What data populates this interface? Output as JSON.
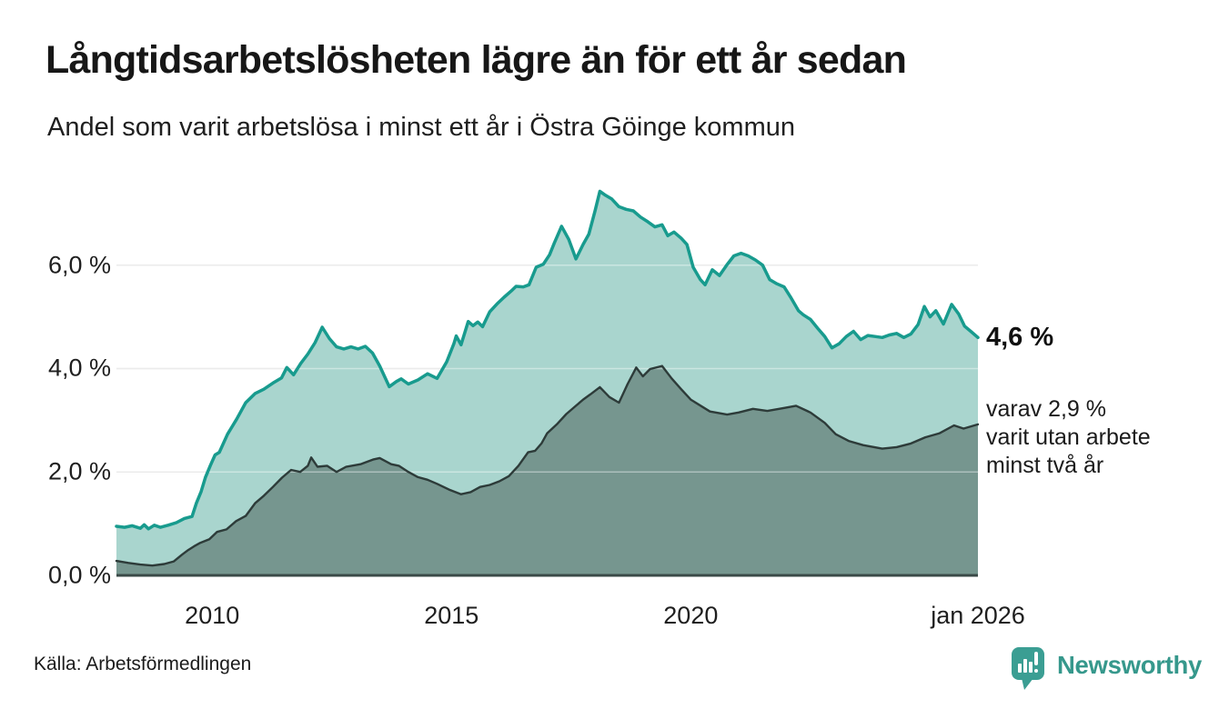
{
  "header": {
    "title": "Långtidsarbetslösheten lägre än för ett år sedan",
    "subtitle": "Andel som varit arbetslösa i minst ett år i Östra Göinge kommun"
  },
  "chart_data": {
    "type": "area",
    "title": "Långtidsarbetslösheten lägre än för ett år sedan",
    "subtitle": "Andel som varit arbetslösa i minst ett år i Östra Göinge kommun",
    "xlabel": "",
    "ylabel": "",
    "xlim": [
      2008,
      2026.0
    ],
    "ylim": [
      0,
      7.7
    ],
    "grid": true,
    "gridlines_at": [
      2,
      4,
      6
    ],
    "gridline_color": "#dedede",
    "baseline_color": "#3a4a47",
    "yticks": [
      {
        "value": 0,
        "label": "0,0 %"
      },
      {
        "value": 2,
        "label": "2,0 %"
      },
      {
        "value": 4,
        "label": "4,0 %"
      },
      {
        "value": 6,
        "label": "6,0 %"
      }
    ],
    "xticks": [
      {
        "value": 2010,
        "label": "2010"
      },
      {
        "value": 2015,
        "label": "2015"
      },
      {
        "value": 2020,
        "label": "2020"
      },
      {
        "value": 2026.0,
        "label": "jan 2026"
      }
    ],
    "series": [
      {
        "name": "Andel som varit arbetslösa i minst ett år",
        "line_color": "#189b8e",
        "fill_color": "#a9d5ce",
        "line_width": 3.5,
        "end_value": "4,6 %",
        "points": [
          [
            2008.0,
            0.95
          ],
          [
            2008.17,
            0.93
          ],
          [
            2008.33,
            0.96
          ],
          [
            2008.5,
            0.91
          ],
          [
            2008.58,
            0.98
          ],
          [
            2008.67,
            0.9
          ],
          [
            2008.79,
            0.97
          ],
          [
            2008.92,
            0.93
          ],
          [
            2009.08,
            0.97
          ],
          [
            2009.25,
            1.02
          ],
          [
            2009.42,
            1.1
          ],
          [
            2009.58,
            1.14
          ],
          [
            2009.67,
            1.4
          ],
          [
            2009.77,
            1.62
          ],
          [
            2009.86,
            1.9
          ],
          [
            2009.96,
            2.12
          ],
          [
            2010.06,
            2.33
          ],
          [
            2010.15,
            2.38
          ],
          [
            2010.32,
            2.73
          ],
          [
            2010.51,
            3.02
          ],
          [
            2010.7,
            3.34
          ],
          [
            2010.9,
            3.52
          ],
          [
            2011.08,
            3.6
          ],
          [
            2011.27,
            3.72
          ],
          [
            2011.45,
            3.82
          ],
          [
            2011.56,
            4.02
          ],
          [
            2011.7,
            3.88
          ],
          [
            2011.85,
            4.1
          ],
          [
            2012.0,
            4.28
          ],
          [
            2012.15,
            4.5
          ],
          [
            2012.3,
            4.8
          ],
          [
            2012.45,
            4.58
          ],
          [
            2012.6,
            4.42
          ],
          [
            2012.75,
            4.38
          ],
          [
            2012.9,
            4.42
          ],
          [
            2013.05,
            4.38
          ],
          [
            2013.2,
            4.43
          ],
          [
            2013.35,
            4.3
          ],
          [
            2013.5,
            4.05
          ],
          [
            2013.7,
            3.65
          ],
          [
            2013.85,
            3.75
          ],
          [
            2013.95,
            3.8
          ],
          [
            2014.1,
            3.7
          ],
          [
            2014.3,
            3.78
          ],
          [
            2014.5,
            3.9
          ],
          [
            2014.7,
            3.81
          ],
          [
            2014.9,
            4.13
          ],
          [
            2015.05,
            4.48
          ],
          [
            2015.1,
            4.63
          ],
          [
            2015.2,
            4.46
          ],
          [
            2015.35,
            4.91
          ],
          [
            2015.45,
            4.83
          ],
          [
            2015.55,
            4.9
          ],
          [
            2015.65,
            4.81
          ],
          [
            2015.8,
            5.1
          ],
          [
            2015.95,
            5.25
          ],
          [
            2016.1,
            5.38
          ],
          [
            2016.25,
            5.5
          ],
          [
            2016.35,
            5.59
          ],
          [
            2016.5,
            5.58
          ],
          [
            2016.62,
            5.62
          ],
          [
            2016.77,
            5.96
          ],
          [
            2016.92,
            6.02
          ],
          [
            2017.05,
            6.2
          ],
          [
            2017.15,
            6.43
          ],
          [
            2017.3,
            6.75
          ],
          [
            2017.45,
            6.5
          ],
          [
            2017.6,
            6.12
          ],
          [
            2017.75,
            6.4
          ],
          [
            2017.87,
            6.6
          ],
          [
            2018.0,
            7.05
          ],
          [
            2018.1,
            7.43
          ],
          [
            2018.22,
            7.35
          ],
          [
            2018.35,
            7.28
          ],
          [
            2018.5,
            7.13
          ],
          [
            2018.65,
            7.08
          ],
          [
            2018.8,
            7.05
          ],
          [
            2018.95,
            6.93
          ],
          [
            2019.1,
            6.84
          ],
          [
            2019.25,
            6.74
          ],
          [
            2019.4,
            6.78
          ],
          [
            2019.52,
            6.57
          ],
          [
            2019.65,
            6.64
          ],
          [
            2019.8,
            6.52
          ],
          [
            2019.92,
            6.4
          ],
          [
            2020.05,
            5.96
          ],
          [
            2020.2,
            5.72
          ],
          [
            2020.3,
            5.62
          ],
          [
            2020.45,
            5.91
          ],
          [
            2020.6,
            5.8
          ],
          [
            2020.75,
            6.0
          ],
          [
            2020.9,
            6.18
          ],
          [
            2021.05,
            6.23
          ],
          [
            2021.2,
            6.18
          ],
          [
            2021.35,
            6.1
          ],
          [
            2021.5,
            6.0
          ],
          [
            2021.65,
            5.72
          ],
          [
            2021.8,
            5.64
          ],
          [
            2021.95,
            5.58
          ],
          [
            2022.1,
            5.36
          ],
          [
            2022.25,
            5.12
          ],
          [
            2022.35,
            5.04
          ],
          [
            2022.5,
            4.95
          ],
          [
            2022.65,
            4.78
          ],
          [
            2022.8,
            4.62
          ],
          [
            2022.95,
            4.4
          ],
          [
            2023.1,
            4.48
          ],
          [
            2023.25,
            4.62
          ],
          [
            2023.4,
            4.72
          ],
          [
            2023.55,
            4.56
          ],
          [
            2023.7,
            4.64
          ],
          [
            2023.85,
            4.62
          ],
          [
            2024.0,
            4.6
          ],
          [
            2024.15,
            4.65
          ],
          [
            2024.3,
            4.68
          ],
          [
            2024.45,
            4.6
          ],
          [
            2024.6,
            4.67
          ],
          [
            2024.75,
            4.85
          ],
          [
            2024.88,
            5.2
          ],
          [
            2025.0,
            5.0
          ],
          [
            2025.12,
            5.12
          ],
          [
            2025.28,
            4.86
          ],
          [
            2025.45,
            5.24
          ],
          [
            2025.6,
            5.05
          ],
          [
            2025.72,
            4.82
          ],
          [
            2025.85,
            4.72
          ],
          [
            2026.0,
            4.6
          ]
        ]
      },
      {
        "name": "varav utan arbete minst två år",
        "line_color": "#2d3b39",
        "fill_color": "#76968f",
        "line_width": 2.4,
        "end_value": "2,9 %",
        "points": [
          [
            2008.0,
            0.28
          ],
          [
            2008.25,
            0.24
          ],
          [
            2008.5,
            0.21
          ],
          [
            2008.75,
            0.19
          ],
          [
            2009.0,
            0.22
          ],
          [
            2009.2,
            0.27
          ],
          [
            2009.37,
            0.4
          ],
          [
            2009.5,
            0.49
          ],
          [
            2009.62,
            0.56
          ],
          [
            2009.75,
            0.63
          ],
          [
            2009.94,
            0.7
          ],
          [
            2010.1,
            0.84
          ],
          [
            2010.3,
            0.89
          ],
          [
            2010.5,
            1.05
          ],
          [
            2010.7,
            1.15
          ],
          [
            2010.9,
            1.4
          ],
          [
            2011.08,
            1.54
          ],
          [
            2011.27,
            1.71
          ],
          [
            2011.46,
            1.89
          ],
          [
            2011.65,
            2.04
          ],
          [
            2011.84,
            2.0
          ],
          [
            2012.0,
            2.12
          ],
          [
            2012.07,
            2.28
          ],
          [
            2012.2,
            2.1
          ],
          [
            2012.4,
            2.12
          ],
          [
            2012.6,
            2.0
          ],
          [
            2012.8,
            2.1
          ],
          [
            2013.1,
            2.15
          ],
          [
            2013.36,
            2.24
          ],
          [
            2013.5,
            2.27
          ],
          [
            2013.74,
            2.15
          ],
          [
            2013.9,
            2.12
          ],
          [
            2014.1,
            2.0
          ],
          [
            2014.3,
            1.9
          ],
          [
            2014.5,
            1.85
          ],
          [
            2014.7,
            1.77
          ],
          [
            2014.95,
            1.66
          ],
          [
            2015.2,
            1.57
          ],
          [
            2015.4,
            1.61
          ],
          [
            2015.6,
            1.71
          ],
          [
            2015.8,
            1.75
          ],
          [
            2016.0,
            1.82
          ],
          [
            2016.2,
            1.92
          ],
          [
            2016.4,
            2.12
          ],
          [
            2016.6,
            2.38
          ],
          [
            2016.75,
            2.41
          ],
          [
            2016.88,
            2.55
          ],
          [
            2017.0,
            2.75
          ],
          [
            2017.2,
            2.92
          ],
          [
            2017.4,
            3.12
          ],
          [
            2017.6,
            3.28
          ],
          [
            2017.75,
            3.4
          ],
          [
            2017.9,
            3.5
          ],
          [
            2018.1,
            3.64
          ],
          [
            2018.3,
            3.45
          ],
          [
            2018.5,
            3.34
          ],
          [
            2018.68,
            3.7
          ],
          [
            2018.86,
            4.02
          ],
          [
            2019.0,
            3.85
          ],
          [
            2019.15,
            3.99
          ],
          [
            2019.4,
            4.05
          ],
          [
            2019.6,
            3.81
          ],
          [
            2019.8,
            3.6
          ],
          [
            2020.0,
            3.4
          ],
          [
            2020.4,
            3.17
          ],
          [
            2020.76,
            3.11
          ],
          [
            2021.0,
            3.15
          ],
          [
            2021.3,
            3.22
          ],
          [
            2021.6,
            3.18
          ],
          [
            2021.9,
            3.23
          ],
          [
            2022.2,
            3.28
          ],
          [
            2022.5,
            3.15
          ],
          [
            2022.8,
            2.95
          ],
          [
            2023.03,
            2.73
          ],
          [
            2023.3,
            2.6
          ],
          [
            2023.6,
            2.52
          ],
          [
            2024.0,
            2.45
          ],
          [
            2024.3,
            2.48
          ],
          [
            2024.6,
            2.55
          ],
          [
            2024.9,
            2.67
          ],
          [
            2025.2,
            2.75
          ],
          [
            2025.5,
            2.9
          ],
          [
            2025.7,
            2.84
          ],
          [
            2026.0,
            2.92
          ]
        ]
      }
    ],
    "annotations": {
      "end_value_label": "4,6 %",
      "detail_lines": [
        "varav 2,9 %",
        "varit utan arbete",
        "minst två år"
      ]
    },
    "legend_position": "none"
  },
  "footer": {
    "source": "Källa: Arbetsförmedlingen",
    "brand": "Newsworthy",
    "brand_color": "#36988c"
  }
}
